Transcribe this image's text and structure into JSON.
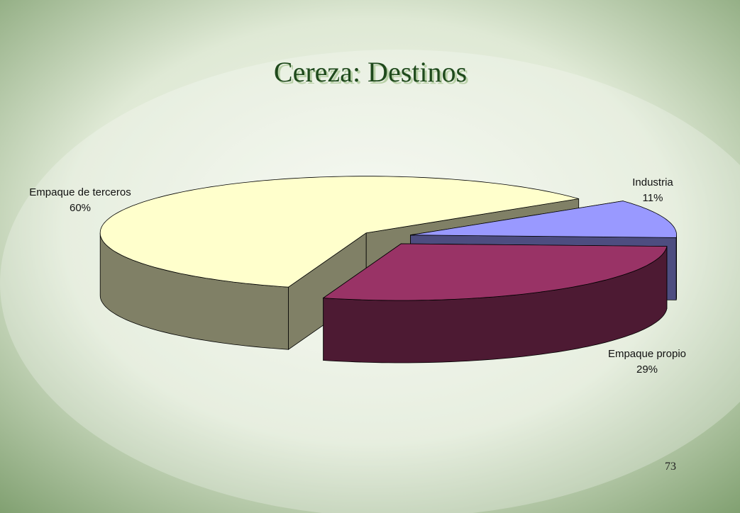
{
  "chart_data": {
    "type": "pie",
    "title": "Cereza: Destinos",
    "categories": [
      "Industria",
      "Empaque propio",
      "Empaque de terceros"
    ],
    "values": [
      11,
      29,
      60
    ],
    "value_labels": [
      "11%",
      "29%",
      "60%"
    ],
    "colors": [
      "#9999ff",
      "#993366",
      "#ffffcc"
    ]
  },
  "slide_number": "73"
}
